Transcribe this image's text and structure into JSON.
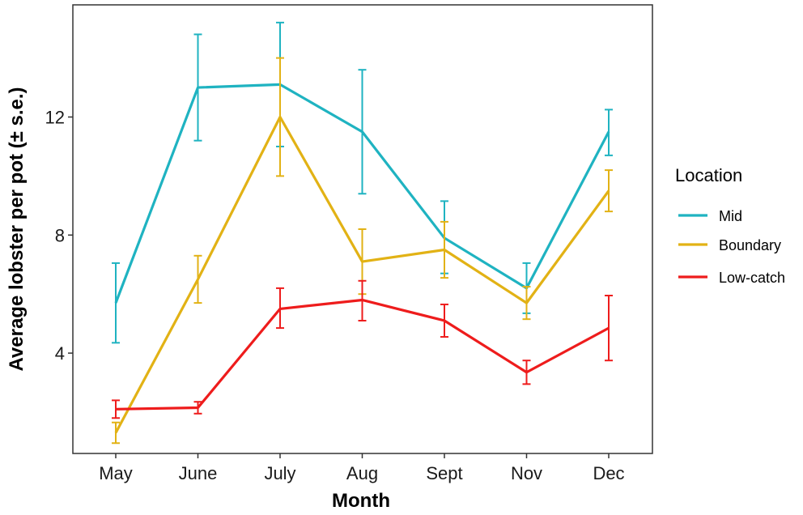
{
  "chart_data": {
    "type": "line",
    "xlabel": "Month",
    "ylabel": "Average lobster per pot (± s.e.)",
    "categories": [
      "May",
      "June",
      "July",
      "Aug",
      "Sept",
      "Nov",
      "Dec"
    ],
    "ylim": [
      0.6,
      15.8
    ],
    "yticks": [
      4,
      8,
      12
    ],
    "ytick_labels": [
      "4",
      "8",
      "12"
    ],
    "grid": false,
    "legend": {
      "title": "Location",
      "position": "right"
    },
    "series": [
      {
        "name": "Mid",
        "color": "#1fb3c1",
        "values": [
          5.7,
          13.0,
          13.1,
          11.5,
          7.9,
          6.2,
          11.5
        ],
        "err_low": [
          4.35,
          11.2,
          11.0,
          9.4,
          6.7,
          5.35,
          10.7
        ],
        "err_high": [
          7.05,
          14.8,
          15.2,
          13.6,
          9.15,
          7.05,
          12.25
        ]
      },
      {
        "name": "Boundary",
        "color": "#e2b215",
        "values": [
          1.3,
          6.5,
          12.0,
          7.1,
          7.5,
          5.7,
          9.5
        ],
        "err_low": [
          0.95,
          5.7,
          10.0,
          6.0,
          6.55,
          5.15,
          8.8
        ],
        "err_high": [
          1.65,
          7.3,
          14.0,
          8.2,
          8.45,
          6.25,
          10.2
        ]
      },
      {
        "name": "Low-catch",
        "color": "#ee1c1c",
        "values": [
          2.1,
          2.15,
          5.5,
          5.8,
          5.1,
          3.35,
          4.85
        ],
        "err_low": [
          1.8,
          1.95,
          4.85,
          5.1,
          4.55,
          2.95,
          3.75
        ],
        "err_high": [
          2.4,
          2.35,
          6.2,
          6.45,
          5.65,
          3.75,
          5.95
        ]
      }
    ]
  }
}
